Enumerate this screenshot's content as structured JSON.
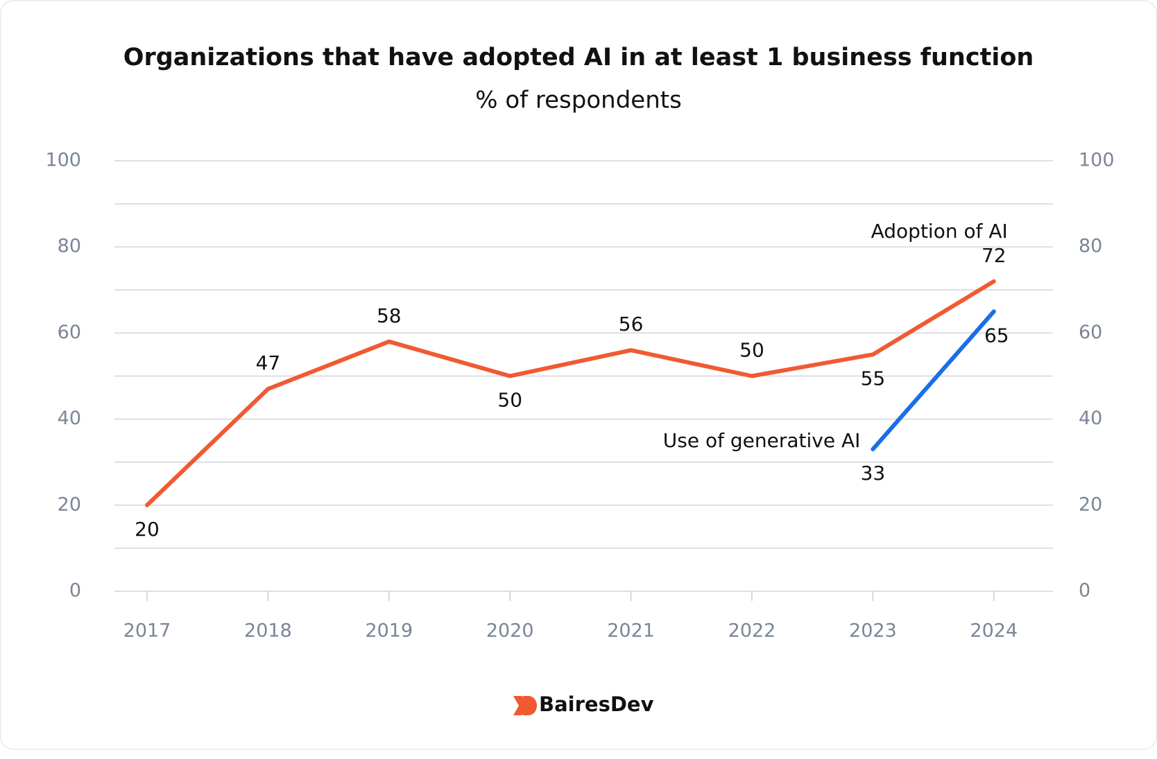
{
  "chart_data": {
    "type": "line",
    "title": "Organizations that have adopted AI in at least 1 business function",
    "subtitle": "% of respondents",
    "categories": [
      "2017",
      "2018",
      "2019",
      "2020",
      "2021",
      "2022",
      "2023",
      "2024"
    ],
    "series": [
      {
        "name": "Adoption of AI",
        "color": "#f05a32",
        "values": [
          20,
          47,
          58,
          50,
          56,
          50,
          55,
          72
        ]
      },
      {
        "name": "Use of generative AI",
        "color": "#1a6fe6",
        "values": [
          null,
          null,
          null,
          null,
          null,
          null,
          33,
          65
        ]
      }
    ],
    "ylim": [
      0,
      100
    ],
    "yticks": [
      0,
      20,
      40,
      60,
      80,
      100
    ],
    "y2lim": [
      0,
      100
    ],
    "y2ticks": [
      0,
      20,
      40,
      60,
      80,
      100
    ],
    "minor_grid": [
      10,
      30,
      50,
      70,
      90
    ],
    "grid": true
  },
  "footer": {
    "brand": "BairesDev"
  }
}
